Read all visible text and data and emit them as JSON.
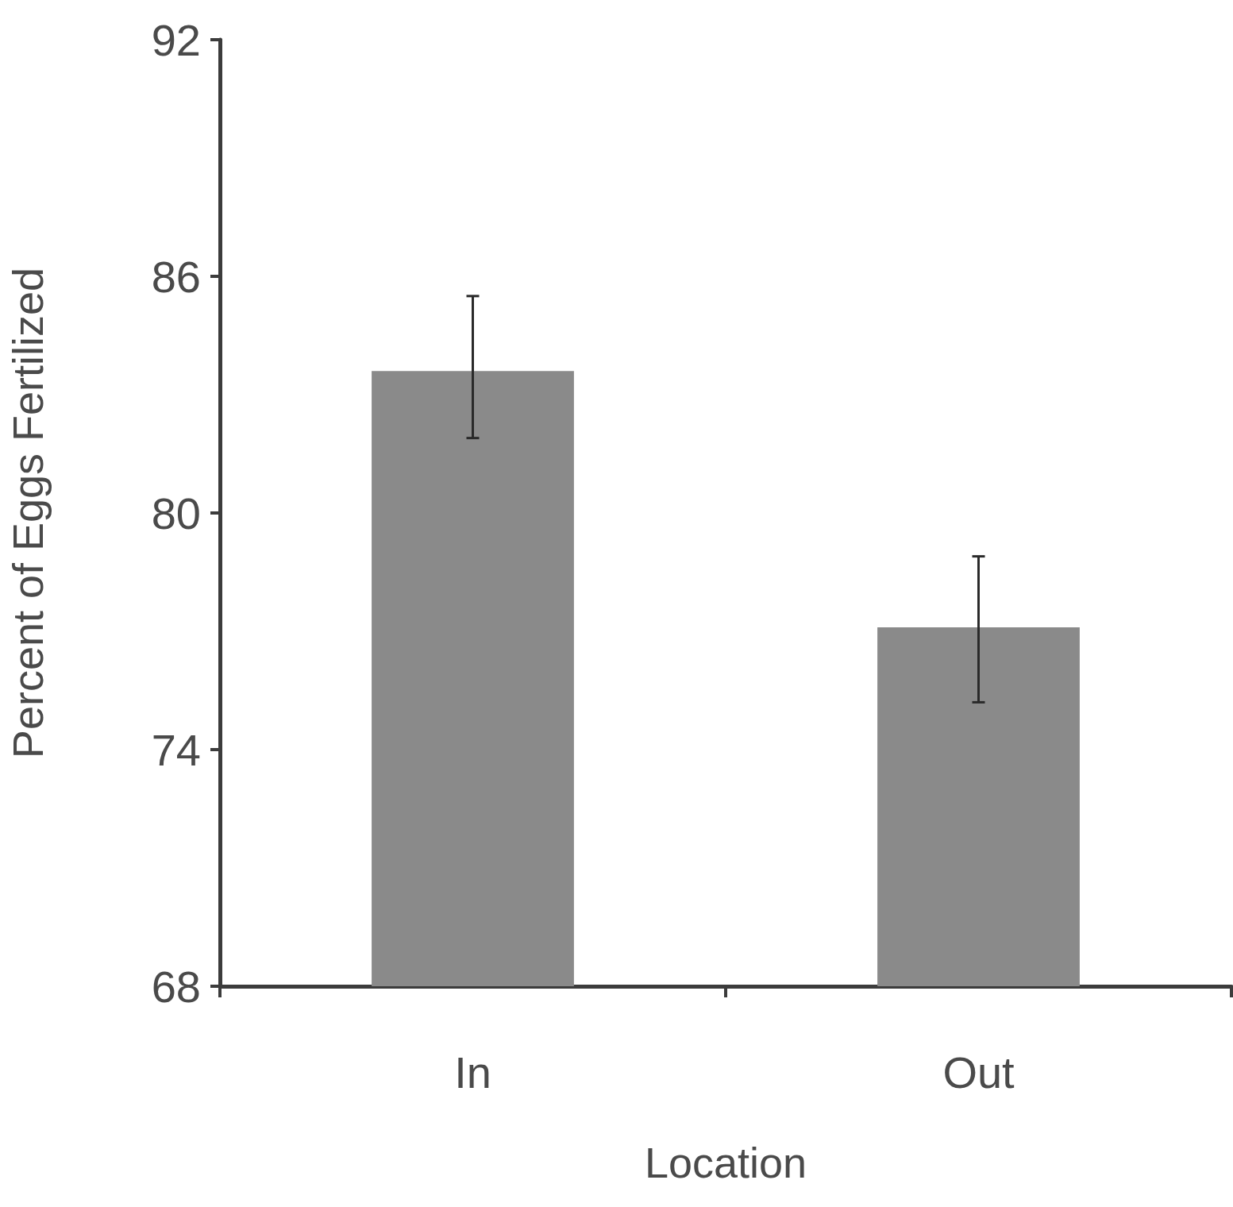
{
  "chart_data": {
    "type": "bar",
    "xlabel": "Location",
    "ylabel": "Percent of Eggs Fertilized",
    "categories": [
      "In",
      "Out"
    ],
    "values": [
      83.6,
      77.1
    ],
    "color": "#8a8a8a",
    "errors": [
      [
        81.9,
        85.5
      ],
      [
        75.2,
        78.9
      ]
    ],
    "ylim": [
      68,
      92
    ],
    "yticks": [
      68,
      74,
      80,
      86,
      92
    ]
  }
}
